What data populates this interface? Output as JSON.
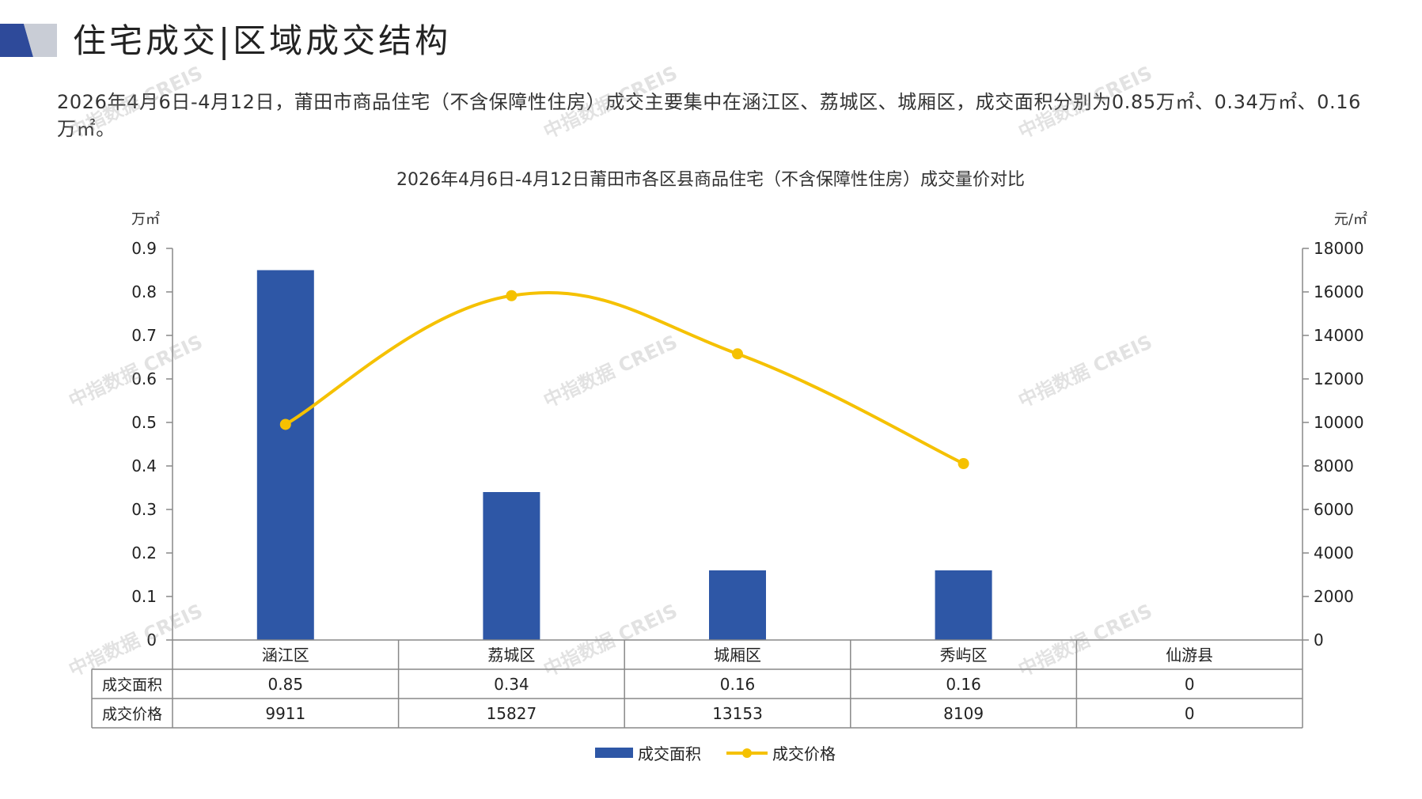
{
  "header": {
    "title": "住宅成交|区域成交结构"
  },
  "description": "2026年4月6日-4月12日，莆田市商品住宅（不含保障性住房）成交主要集中在涵江区、荔城区、城厢区，成交面积分别为0.85万㎡、0.34万㎡、0.16万㎡。",
  "watermark_text": "中指数据 CREIS",
  "colors": {
    "bar": "#2e57a6",
    "line": "#f5c100",
    "logo_dark": "#2e4a9a",
    "logo_light": "#c9cdd6"
  },
  "chart_data": {
    "type": "bar",
    "title": "2026年4月6日-4月12日莆田市各区县商品住宅（不含保障性住房）成交量价对比",
    "categories": [
      "涵江区",
      "荔城区",
      "城厢区",
      "秀屿区",
      "仙游县"
    ],
    "left_unit": "万㎡",
    "right_unit": "元/㎡",
    "ylim_left": [
      0,
      0.9
    ],
    "ylim_right": [
      0,
      18000
    ],
    "left_ticks": [
      "0",
      "0.1",
      "0.2",
      "0.3",
      "0.4",
      "0.5",
      "0.6",
      "0.7",
      "0.8",
      "0.9"
    ],
    "right_ticks": [
      "0",
      "2000",
      "4000",
      "6000",
      "8000",
      "10000",
      "12000",
      "14000",
      "16000",
      "18000"
    ],
    "series": [
      {
        "name": "成交面积",
        "type": "bar",
        "axis": "left",
        "values": [
          0.85,
          0.34,
          0.16,
          0.16,
          0
        ]
      },
      {
        "name": "成交价格",
        "type": "line",
        "axis": "right",
        "values": [
          9911,
          15827,
          13153,
          8109,
          0
        ]
      }
    ],
    "table_rows": [
      {
        "label": "成交面积",
        "values": [
          "0.85",
          "0.34",
          "0.16",
          "0.16",
          "0"
        ]
      },
      {
        "label": "成交价格",
        "values": [
          "9911",
          "15827",
          "13153",
          "8109",
          "0"
        ]
      }
    ],
    "legend": [
      "成交面积",
      "成交价格"
    ],
    "legend_position": "bottom",
    "grid": false
  }
}
